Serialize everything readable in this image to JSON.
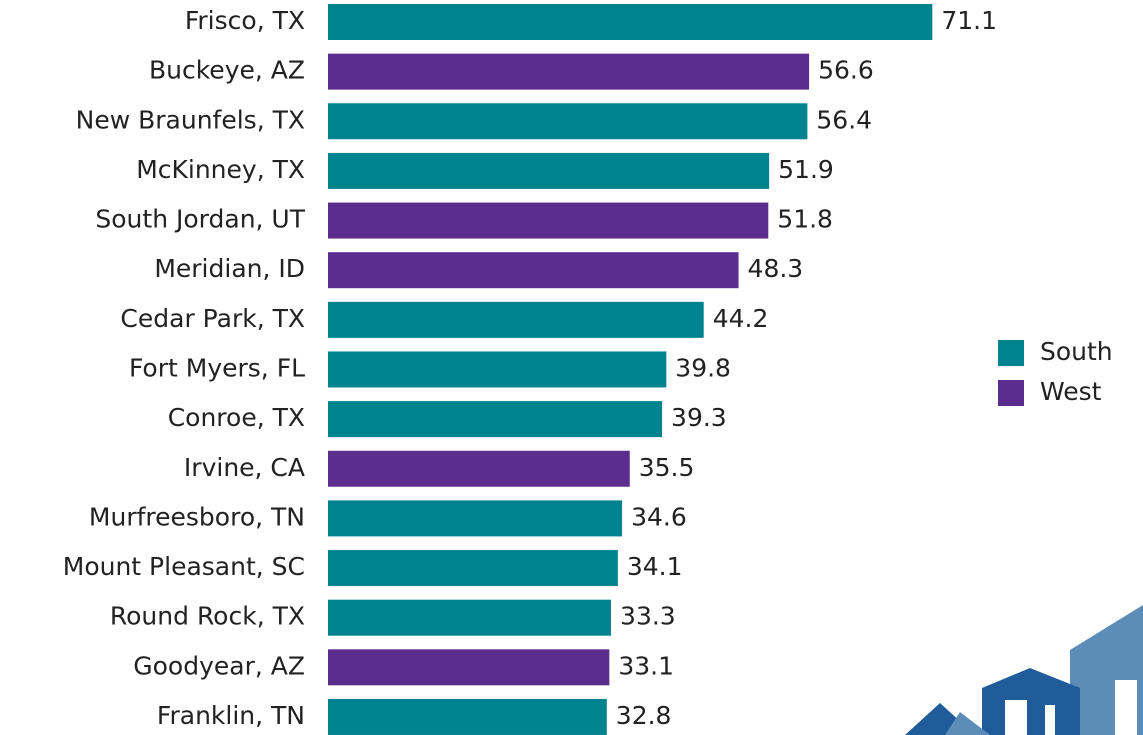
{
  "chart_data": {
    "type": "hbar",
    "categories": [
      "Frisco, TX",
      "Buckeye, AZ",
      "New Braunfels, TX",
      "McKinney, TX",
      "South Jordan, UT",
      "Meridian, ID",
      "Cedar Park, TX",
      "Fort Myers, FL",
      "Conroe, TX",
      "Irvine, CA",
      "Murfreesboro, TN",
      "Mount Pleasant, SC",
      "Round Rock, TX",
      "Goodyear, AZ",
      "Franklin, TN"
    ],
    "series": [
      {
        "name": "South",
        "color": "#00838f",
        "values": [
          71.1,
          null,
          56.4,
          51.9,
          null,
          null,
          44.2,
          39.8,
          39.3,
          null,
          34.6,
          34.1,
          33.3,
          null,
          32.8
        ]
      },
      {
        "name": "West",
        "color": "#5b2d8e",
        "values": [
          null,
          56.6,
          null,
          null,
          51.8,
          48.3,
          null,
          null,
          null,
          35.5,
          null,
          null,
          null,
          33.1,
          null
        ]
      }
    ],
    "legend": "right"
  }
}
